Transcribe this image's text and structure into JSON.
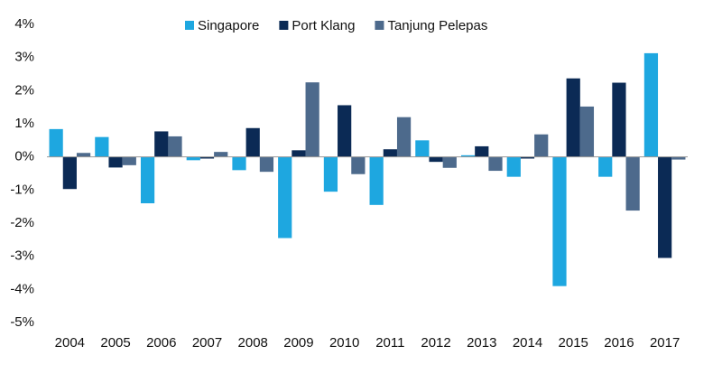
{
  "chart_data": {
    "type": "bar",
    "categories": [
      "2004",
      "2005",
      "2006",
      "2007",
      "2008",
      "2009",
      "2010",
      "2011",
      "2012",
      "2013",
      "2014",
      "2015",
      "2016",
      "2017"
    ],
    "series": [
      {
        "name": "Singapore",
        "color": "#1ea7e0",
        "values": [
          0.84,
          0.6,
          -1.4,
          -0.1,
          -0.4,
          -2.45,
          -1.05,
          -1.45,
          0.5,
          0.05,
          -0.6,
          -3.9,
          -0.6,
          3.13
        ]
      },
      {
        "name": "Port Klang",
        "color": "#0b2a55",
        "values": [
          -0.97,
          -0.32,
          0.77,
          -0.05,
          0.87,
          0.2,
          1.56,
          0.23,
          -0.15,
          0.32,
          -0.05,
          2.37,
          2.24,
          -3.05
        ]
      },
      {
        "name": "Tanjung Pelepas",
        "color": "#4d6a8c",
        "values": [
          0.12,
          -0.25,
          0.62,
          0.15,
          -0.45,
          2.25,
          -0.52,
          1.2,
          -0.33,
          -0.42,
          0.68,
          1.52,
          -1.62,
          -0.08
        ]
      }
    ],
    "ylim": [
      -5,
      4
    ],
    "yticks": [
      {
        "value": -5,
        "label": "-5%"
      },
      {
        "value": -4,
        "label": "-4%"
      },
      {
        "value": -3,
        "label": "-3%"
      },
      {
        "value": -2,
        "label": "-2%"
      },
      {
        "value": -1,
        "label": "-1%"
      },
      {
        "value": 0,
        "label": "0%"
      },
      {
        "value": 1,
        "label": "1%"
      },
      {
        "value": 2,
        "label": "2%"
      },
      {
        "value": 3,
        "label": "3%"
      },
      {
        "value": 4,
        "label": "4%"
      }
    ],
    "grid": false,
    "legend": "top"
  }
}
